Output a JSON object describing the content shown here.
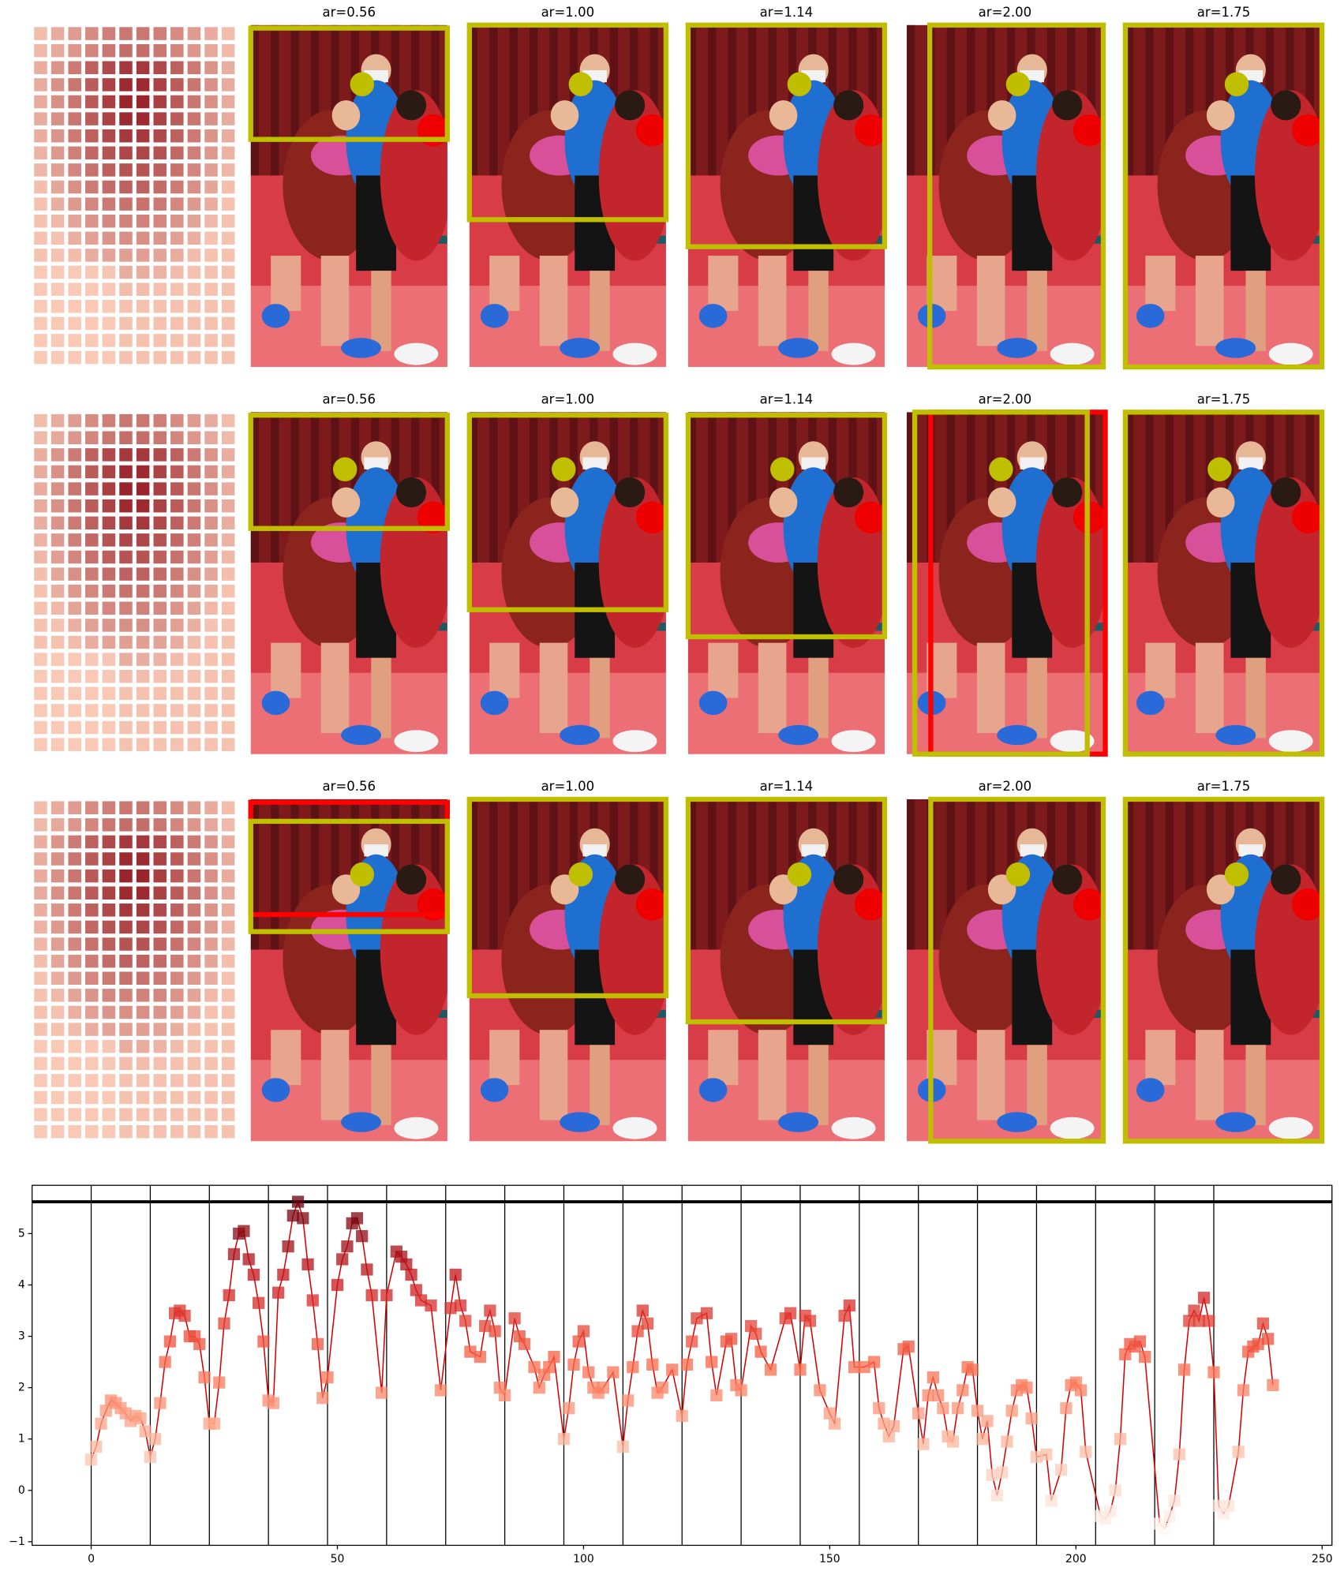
{
  "panels": {
    "rows": [
      [
        "ar=0.56",
        "ar=1.00",
        "ar=1.14",
        "ar=2.00",
        "ar=1.75"
      ],
      [
        "ar=0.56",
        "ar=1.00",
        "ar=1.14",
        "ar=2.00",
        "ar=1.75"
      ],
      [
        "ar=0.56",
        "ar=1.00",
        "ar=1.14",
        "ar=2.00",
        "ar=1.75"
      ]
    ]
  },
  "chart_data": {
    "type": "line",
    "x": [
      0,
      1,
      2,
      3,
      4,
      5,
      6,
      7,
      8,
      9,
      10,
      11,
      12,
      13,
      14,
      15,
      16,
      17,
      18,
      19,
      20,
      21,
      22,
      23,
      24,
      25,
      26,
      27,
      28,
      29,
      30,
      31,
      32,
      33,
      34,
      35,
      36,
      37,
      38,
      39,
      40,
      41,
      42,
      43,
      44,
      45,
      46,
      47,
      48,
      50,
      51,
      52,
      53,
      54,
      55,
      56,
      57,
      59,
      60,
      62,
      63,
      64,
      65,
      66,
      67,
      69,
      71,
      73,
      74,
      75,
      76,
      77,
      79,
      80,
      81,
      82,
      83,
      84,
      86,
      87,
      88,
      90,
      91,
      92,
      93,
      94,
      96,
      97,
      98,
      99,
      100,
      101,
      102,
      103,
      104,
      106,
      108,
      109,
      110,
      111,
      112,
      113,
      114,
      115,
      116,
      118,
      120,
      121,
      122,
      123,
      125,
      126,
      127,
      129,
      130,
      131,
      132,
      134,
      135,
      136,
      138,
      141,
      142,
      144,
      145,
      146,
      148,
      150,
      151,
      153,
      154,
      155,
      157,
      159,
      160,
      161,
      162,
      163,
      165,
      166,
      168,
      169,
      170,
      171,
      172,
      173,
      174,
      175,
      176,
      177,
      178,
      179,
      180,
      181,
      182,
      183,
      184,
      185,
      186,
      187,
      188,
      189,
      190,
      191,
      192,
      194,
      195,
      197,
      198,
      199,
      200,
      201,
      202,
      205,
      206,
      207,
      208,
      209,
      210,
      211,
      212,
      213,
      214,
      217,
      218,
      219,
      220,
      221,
      222,
      223,
      224,
      225,
      226,
      227,
      228,
      229,
      230,
      231,
      233,
      234,
      235,
      236,
      237,
      238,
      239,
      240
    ],
    "values": [
      0.6,
      0.85,
      1.3,
      1.55,
      1.75,
      1.7,
      1.6,
      1.5,
      1.35,
      1.45,
      1.4,
      1.15,
      0.65,
      1.0,
      1.7,
      2.5,
      2.9,
      3.45,
      3.5,
      3.4,
      3.0,
      3.0,
      2.85,
      2.2,
      1.3,
      1.3,
      2.1,
      3.25,
      3.8,
      4.6,
      5.0,
      5.05,
      4.5,
      4.2,
      3.65,
      2.9,
      1.75,
      1.7,
      3.85,
      4.2,
      4.75,
      5.35,
      5.62,
      5.3,
      4.4,
      3.7,
      2.85,
      1.8,
      2.2,
      4.0,
      4.5,
      4.75,
      5.2,
      5.3,
      4.95,
      4.3,
      3.8,
      1.9,
      3.8,
      4.65,
      4.55,
      4.4,
      4.2,
      3.9,
      3.7,
      3.6,
      1.95,
      3.55,
      4.2,
      3.6,
      3.3,
      2.7,
      2.6,
      3.2,
      3.5,
      3.1,
      2.0,
      1.85,
      3.35,
      3.0,
      2.85,
      2.4,
      2.0,
      2.25,
      2.4,
      2.6,
      1.0,
      1.6,
      2.45,
      2.9,
      3.1,
      2.3,
      2.0,
      1.9,
      2.0,
      2.3,
      0.85,
      1.75,
      2.4,
      3.1,
      3.5,
      3.25,
      2.45,
      1.9,
      2.0,
      2.35,
      1.45,
      2.45,
      2.9,
      3.35,
      3.45,
      2.5,
      1.85,
      2.9,
      2.95,
      2.05,
      1.95,
      3.2,
      3.05,
      2.7,
      2.35,
      3.35,
      3.45,
      2.35,
      3.4,
      3.3,
      1.95,
      1.5,
      1.3,
      3.4,
      3.6,
      2.4,
      2.4,
      2.5,
      1.6,
      1.3,
      1.05,
      1.25,
      2.75,
      2.8,
      1.5,
      0.9,
      1.85,
      2.2,
      1.85,
      1.6,
      1.05,
      0.95,
      1.6,
      1.95,
      2.4,
      2.35,
      1.55,
      1.0,
      1.35,
      0.3,
      -0.1,
      0.35,
      0.95,
      1.55,
      1.95,
      2.05,
      2.0,
      1.4,
      0.65,
      0.7,
      -0.2,
      0.4,
      1.6,
      2.05,
      2.1,
      1.95,
      0.75,
      -0.5,
      -0.55,
      -0.4,
      0.0,
      1.0,
      2.65,
      2.85,
      2.8,
      2.9,
      2.6,
      -0.65,
      -0.75,
      -0.5,
      -0.2,
      0.7,
      2.35,
      3.3,
      3.5,
      3.3,
      3.75,
      3.3,
      2.3,
      -0.3,
      -0.45,
      -0.3,
      0.75,
      1.95,
      2.7,
      2.8,
      2.85,
      3.25,
      2.95,
      2.05
    ],
    "line_color": "#d40000",
    "cmap": [
      "#fff5f0",
      "#fcbba1",
      "#fb6a4a",
      "#cb181d",
      "#67000d"
    ],
    "xlim": [
      -12,
      252
    ],
    "xticks": [
      0,
      50,
      100,
      150,
      200,
      250
    ],
    "ylim": [
      -1.07,
      5.94
    ],
    "yticks": [
      {
        "value": -1,
        "label": "−1"
      },
      0,
      1,
      2,
      3,
      4,
      5
    ],
    "vlines": [
      0,
      12,
      24,
      36,
      48,
      60,
      72,
      84,
      96,
      108,
      120,
      132,
      144,
      156,
      168,
      180,
      192,
      204,
      216,
      228
    ],
    "hline": 5.62
  }
}
